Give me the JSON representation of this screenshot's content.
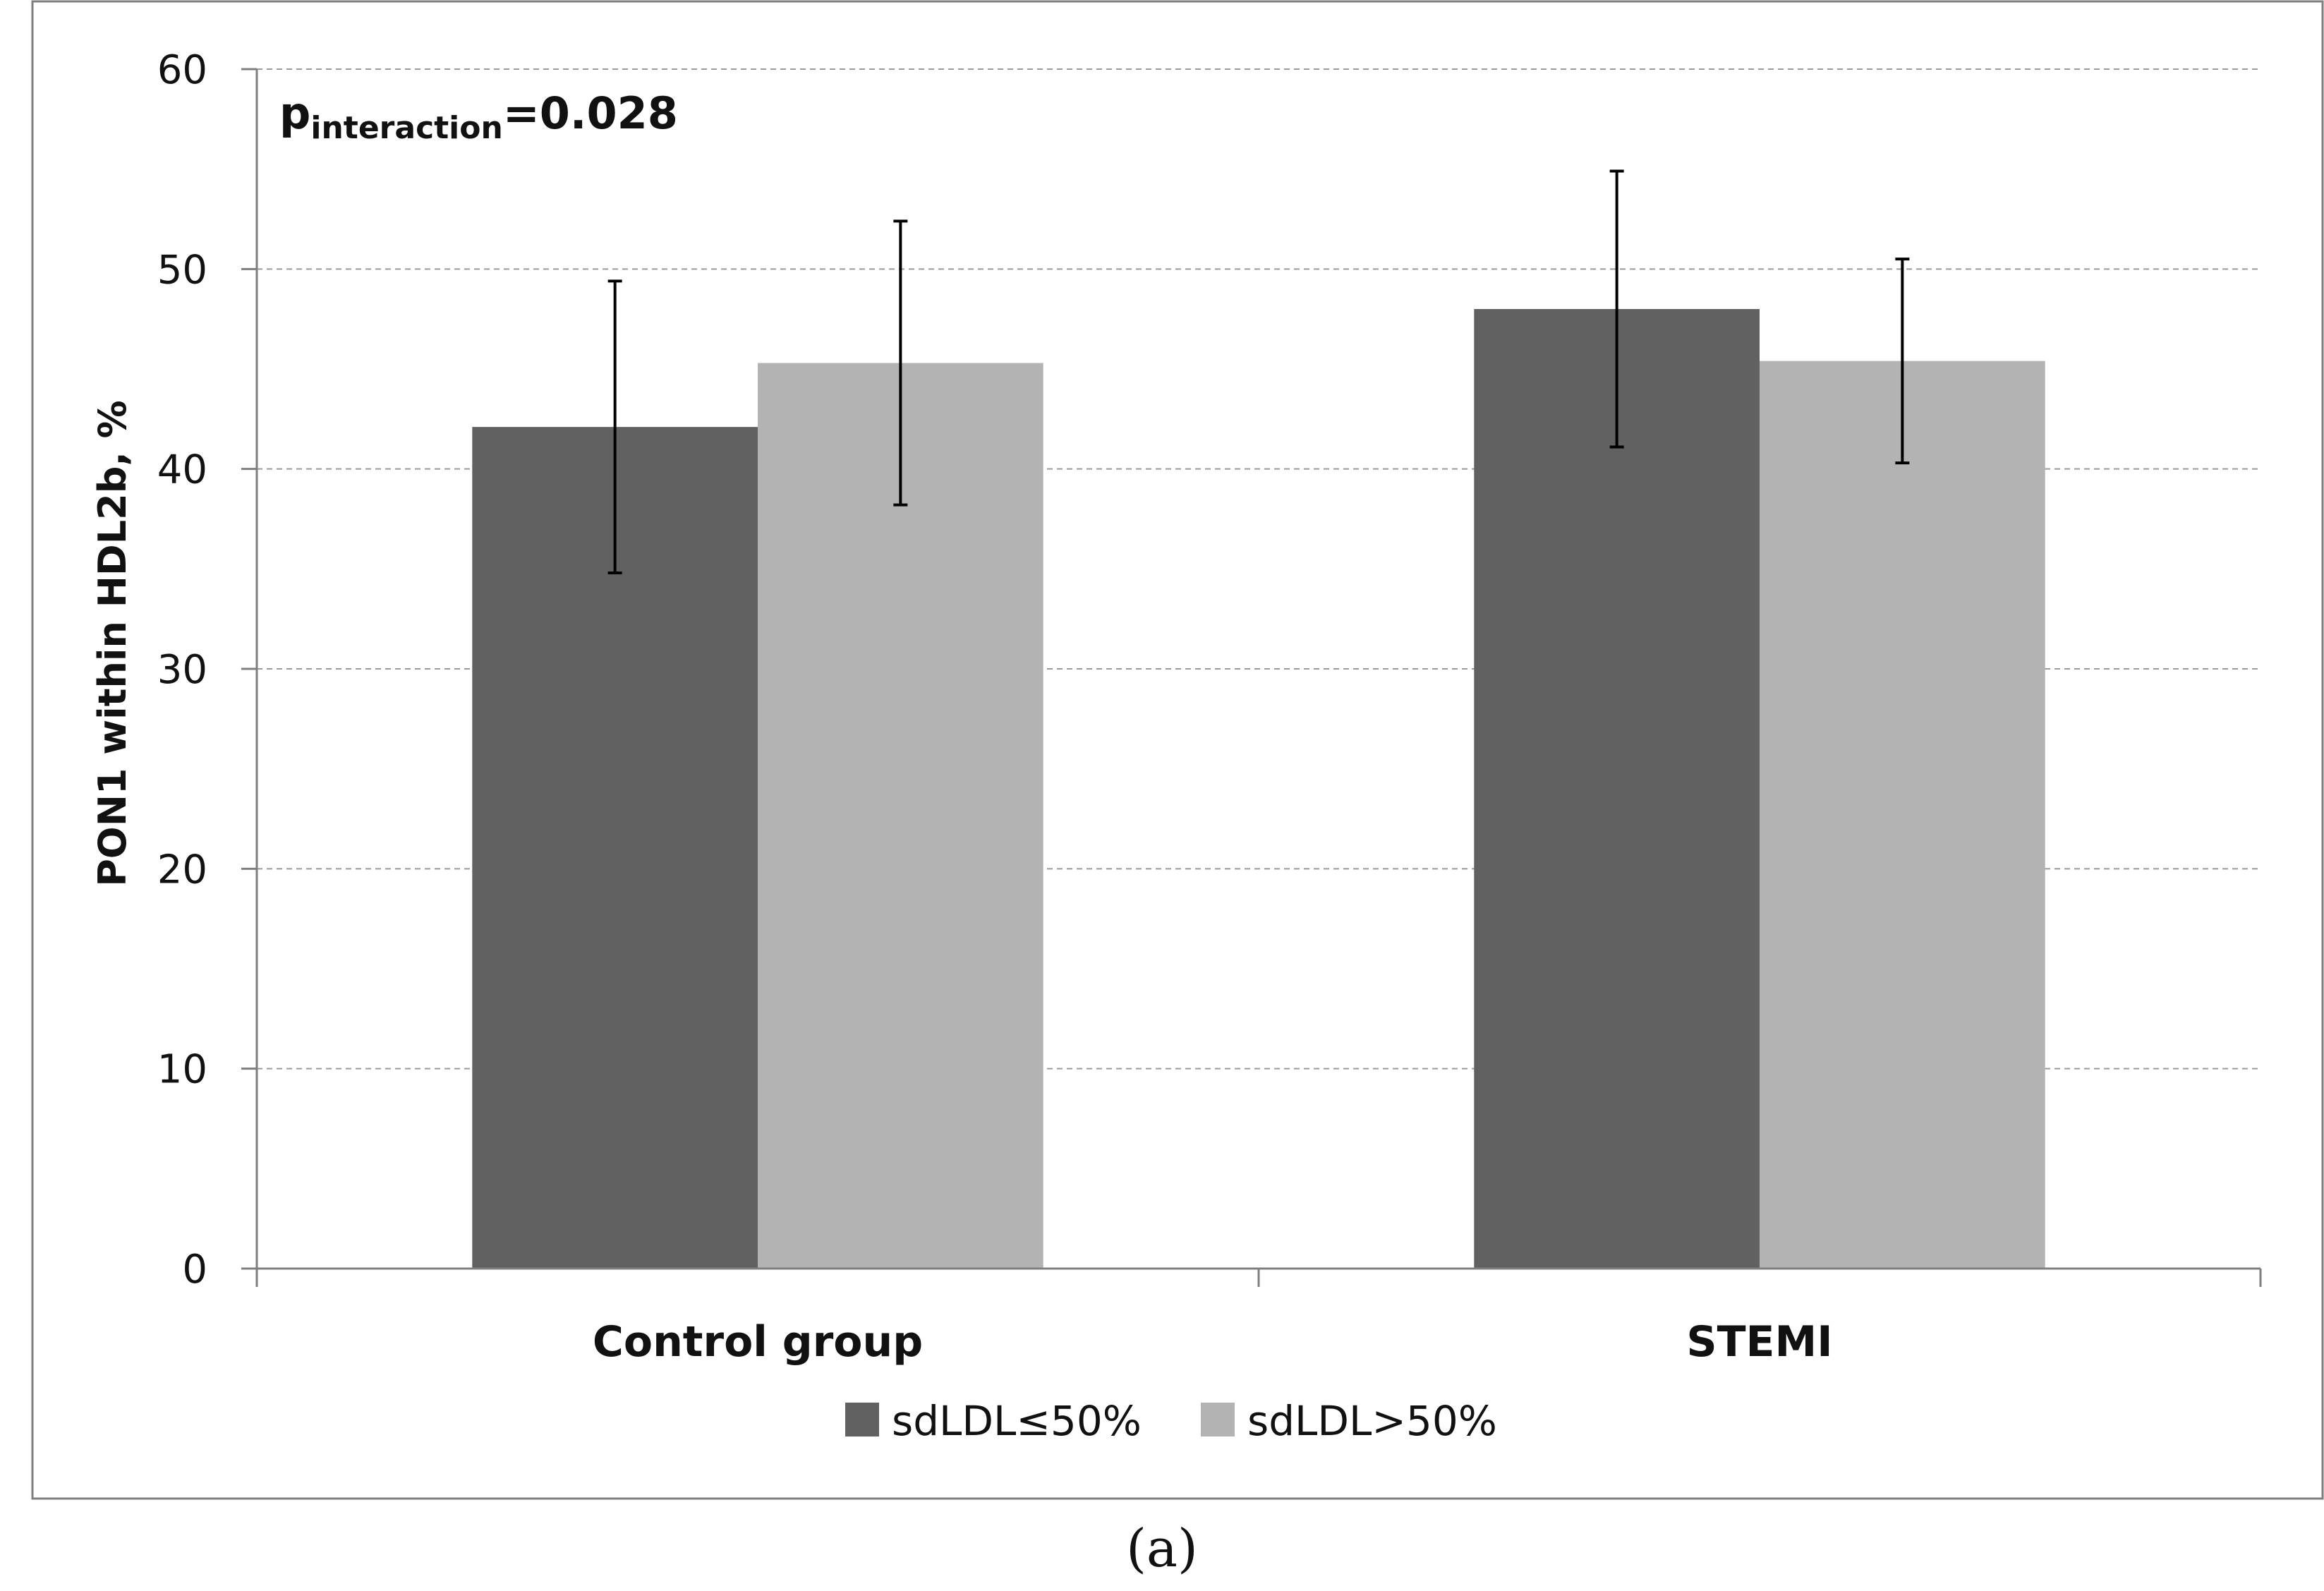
{
  "chart_data": {
    "type": "bar",
    "categories": [
      "Control group",
      "STEMI"
    ],
    "series": [
      {
        "name": "sdLDL≤50%",
        "color": "#616161",
        "values": [
          42.1,
          48.0
        ],
        "error": [
          7.3,
          6.9
        ]
      },
      {
        "name": "sdLDL>50%",
        "color": "#b3b3b3",
        "values": [
          45.3,
          45.4
        ],
        "error": [
          7.1,
          5.1
        ]
      }
    ],
    "title": "",
    "xlabel": "",
    "ylabel": "PON1 within HDL2b, %",
    "ylim": [
      0,
      60
    ],
    "yticks": [
      0,
      10,
      20,
      30,
      40,
      50,
      60
    ],
    "grid": true,
    "legend_position": "bottom",
    "annotation": {
      "main": "p",
      "subscript": "interaction",
      "rest": "=0.028"
    }
  },
  "caption": "(a)"
}
